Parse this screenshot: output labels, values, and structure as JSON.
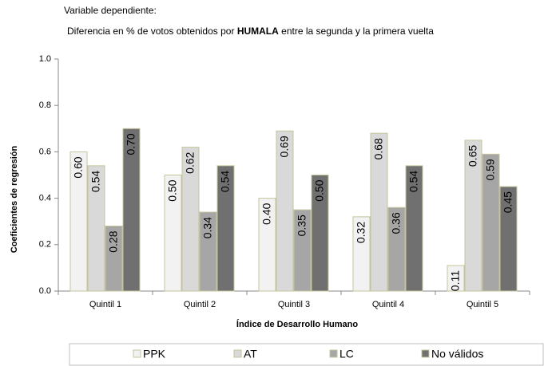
{
  "chart_data": {
    "type": "bar",
    "title": "Variable dependiente:",
    "subtitle": [
      "Diferencia en % de votos obtenidos por",
      "HUMALA",
      "entre la segunda y la primera vuelta"
    ],
    "x_label": "Índice de Desarrollo Humano",
    "y_label": "Coeficientes de regresión",
    "categories": [
      "Quintil 1",
      "Quintil 2",
      "Quintil 3",
      "Quintil 4",
      "Quintil 5"
    ],
    "series": [
      {
        "name": "PPK",
        "color": "#f2f2f2",
        "values": [
          0.6,
          0.5,
          0.4,
          0.32,
          0.11
        ],
        "value_labels": [
          "0.60",
          "0.50",
          "0.40",
          "0.32",
          "0.11"
        ]
      },
      {
        "name": "AT",
        "color": "#d9d9d9",
        "values": [
          0.54,
          0.62,
          0.69,
          0.68,
          0.65
        ],
        "value_labels": [
          "0.54",
          "0.62",
          "0.69",
          "0.68",
          "0.65"
        ]
      },
      {
        "name": "LC",
        "color": "#a6a6a6",
        "values": [
          0.28,
          0.34,
          0.35,
          0.36,
          0.59
        ],
        "value_labels": [
          "0.28",
          "0.34",
          "0.35",
          "0.36",
          "0.59"
        ]
      },
      {
        "name": "No válidos",
        "color": "#707070",
        "values": [
          0.7,
          0.54,
          0.5,
          0.54,
          0.45
        ],
        "value_labels": [
          "0.70",
          "0.54",
          "0.50",
          "0.54",
          "0.45"
        ]
      }
    ],
    "ylim": [
      0,
      1
    ],
    "yticks": [
      {
        "value": 0,
        "label": "0.0"
      },
      {
        "value": 0.2,
        "label": "0.2"
      },
      {
        "value": 0.4,
        "label": "0.4"
      },
      {
        "value": 0.6,
        "label": "0.6"
      },
      {
        "value": 0.8,
        "label": "0.8"
      },
      {
        "value": 1,
        "label": "1.0"
      }
    ],
    "legend": "bottom"
  }
}
